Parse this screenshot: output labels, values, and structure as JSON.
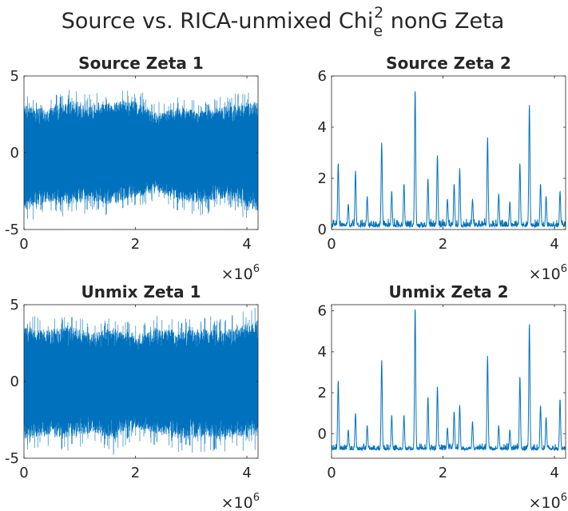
{
  "figure": {
    "title_main": "Source vs. RICA-unmixed Chi",
    "title_sub": "e",
    "title_sup": "2",
    "title_end": " nonG Zeta"
  },
  "colors": {
    "line": "#0072BD",
    "axis": "#262626",
    "background": "#ffffff"
  },
  "chart_data": [
    {
      "type": "line",
      "title": "Source Zeta 1",
      "xlim": [
        0,
        4200000
      ],
      "ylim": [
        -5,
        5
      ],
      "xticks": [
        0,
        2000000,
        4000000
      ],
      "xtick_labels": [
        "0",
        "2",
        "4"
      ],
      "yticks": [
        -5,
        0,
        5
      ],
      "ytick_labels": [
        "-5",
        "0",
        "5"
      ],
      "x_exponent_label": "×10",
      "x_exponent": "6",
      "signal": "dense_noise",
      "envelope": {
        "x": [
          0,
          400000,
          800000,
          1200000,
          1600000,
          2000000,
          2400000,
          2800000,
          3200000,
          3600000,
          4200000
        ],
        "max": [
          3.9,
          3.5,
          4.4,
          3.8,
          4.2,
          4.3,
          3.3,
          3.7,
          3.4,
          3.8,
          4.2
        ],
        "min": [
          -4.7,
          -4.0,
          -4.2,
          -3.9,
          -4.3,
          -3.6,
          -3.2,
          -4.0,
          -4.1,
          -3.7,
          -4.8
        ]
      },
      "center": 0
    },
    {
      "type": "line",
      "title": "Source Zeta 2",
      "xlim": [
        0,
        4200000
      ],
      "ylim": [
        0,
        6
      ],
      "xticks": [
        0,
        2000000,
        4000000
      ],
      "xtick_labels": [
        "0",
        "2",
        "4"
      ],
      "yticks": [
        0,
        2,
        4,
        6
      ],
      "ytick_labels": [
        "0",
        "2",
        "4",
        "6"
      ],
      "x_exponent_label": "×10",
      "x_exponent": "6",
      "signal": "sparse_spikes",
      "baseline": 0.1,
      "peaks": [
        {
          "x": 120000,
          "y": 2.6
        },
        {
          "x": 300000,
          "y": 1.0
        },
        {
          "x": 430000,
          "y": 2.3
        },
        {
          "x": 640000,
          "y": 1.3
        },
        {
          "x": 900000,
          "y": 3.4
        },
        {
          "x": 1080000,
          "y": 1.5
        },
        {
          "x": 1300000,
          "y": 1.8
        },
        {
          "x": 1500000,
          "y": 5.5
        },
        {
          "x": 1730000,
          "y": 2.0
        },
        {
          "x": 1900000,
          "y": 2.9
        },
        {
          "x": 2080000,
          "y": 1.2
        },
        {
          "x": 2200000,
          "y": 1.8
        },
        {
          "x": 2300000,
          "y": 2.4
        },
        {
          "x": 2530000,
          "y": 1.2
        },
        {
          "x": 2800000,
          "y": 3.6
        },
        {
          "x": 3000000,
          "y": 1.4
        },
        {
          "x": 3200000,
          "y": 1.1
        },
        {
          "x": 3380000,
          "y": 2.6
        },
        {
          "x": 3550000,
          "y": 4.9
        },
        {
          "x": 3750000,
          "y": 1.8
        },
        {
          "x": 3850000,
          "y": 1.3
        },
        {
          "x": 4100000,
          "y": 1.5
        }
      ]
    },
    {
      "type": "line",
      "title": "Unmix Zeta 1",
      "xlim": [
        0,
        4200000
      ],
      "ylim": [
        -5,
        5
      ],
      "xticks": [
        0,
        2000000,
        4000000
      ],
      "xtick_labels": [
        "0",
        "2",
        "4"
      ],
      "yticks": [
        -5,
        0,
        5
      ],
      "ytick_labels": [
        "-5",
        "0",
        "5"
      ],
      "x_exponent_label": "×10",
      "x_exponent": "6",
      "signal": "dense_noise",
      "envelope": {
        "x": [
          0,
          400000,
          800000,
          1200000,
          1600000,
          2000000,
          2400000,
          2800000,
          3200000,
          3600000,
          4200000
        ],
        "max": [
          4.4,
          4.2,
          4.6,
          4.0,
          4.3,
          3.7,
          4.3,
          4.1,
          4.3,
          4.2,
          5.0
        ],
        "min": [
          -4.7,
          -4.5,
          -4.6,
          -4.2,
          -4.8,
          -3.9,
          -4.2,
          -4.7,
          -4.6,
          -4.6,
          -4.5
        ]
      },
      "center": 0
    },
    {
      "type": "line",
      "title": "Unmix Zeta 2",
      "xlim": [
        0,
        4200000
      ],
      "ylim": [
        -1.2,
        6.3
      ],
      "xticks": [
        0,
        2000000,
        4000000
      ],
      "xtick_labels": [
        "0",
        "2",
        "4"
      ],
      "yticks": [
        0,
        2,
        4,
        6
      ],
      "ytick_labels": [
        "0",
        "2",
        "4",
        "6"
      ],
      "x_exponent_label": "×10",
      "x_exponent": "6",
      "signal": "sparse_spikes",
      "baseline": -0.8,
      "peaks": [
        {
          "x": 120000,
          "y": 2.6
        },
        {
          "x": 300000,
          "y": 0.2
        },
        {
          "x": 430000,
          "y": 1.0
        },
        {
          "x": 640000,
          "y": 0.4
        },
        {
          "x": 900000,
          "y": 3.6
        },
        {
          "x": 1080000,
          "y": 0.9
        },
        {
          "x": 1300000,
          "y": 0.9
        },
        {
          "x": 1500000,
          "y": 6.2
        },
        {
          "x": 1730000,
          "y": 1.8
        },
        {
          "x": 1900000,
          "y": 2.3
        },
        {
          "x": 2080000,
          "y": 0.3
        },
        {
          "x": 2200000,
          "y": 1.1
        },
        {
          "x": 2300000,
          "y": 1.4
        },
        {
          "x": 2530000,
          "y": 0.6
        },
        {
          "x": 2800000,
          "y": 3.8
        },
        {
          "x": 3000000,
          "y": 0.4
        },
        {
          "x": 3200000,
          "y": 0.2
        },
        {
          "x": 3380000,
          "y": 2.8
        },
        {
          "x": 3550000,
          "y": 5.4
        },
        {
          "x": 3750000,
          "y": 1.4
        },
        {
          "x": 3850000,
          "y": 0.8
        },
        {
          "x": 4100000,
          "y": 1.7
        }
      ]
    }
  ]
}
